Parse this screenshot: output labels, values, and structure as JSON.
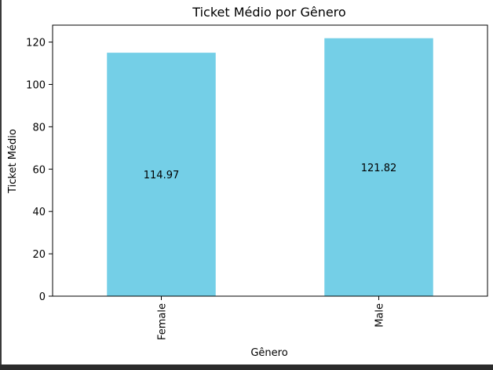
{
  "chart_data": {
    "type": "bar",
    "title": "Ticket Médio por Gênero",
    "xlabel": "Gênero",
    "ylabel": "Ticket Médio",
    "categories": [
      "Female",
      "Male"
    ],
    "values": [
      114.97,
      121.82
    ],
    "value_labels": [
      "114.97",
      "121.82"
    ],
    "ylim": [
      0,
      128
    ],
    "yticks": [
      0,
      20,
      40,
      60,
      80,
      100,
      120
    ],
    "ytick_labels": [
      "0",
      "20",
      "40",
      "60",
      "80",
      "100",
      "120"
    ],
    "bar_color": "#74cfe7",
    "grid": false,
    "legend": "none"
  }
}
